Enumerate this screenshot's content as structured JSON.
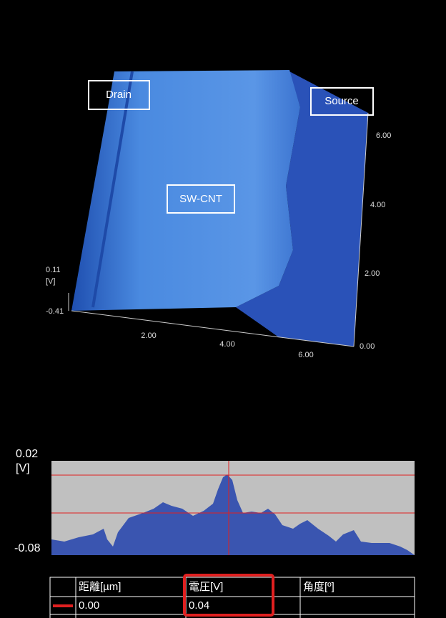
{
  "surface_view": {
    "labels": {
      "drain": "Drain",
      "source": "Source",
      "cnt": "SW-CNT"
    },
    "z_axis": {
      "max": "0.11",
      "unit": "[V]",
      "min": "-0.41"
    },
    "x_axis": {
      "ticks": [
        "2.00",
        "4.00",
        "6.00"
      ]
    },
    "y_axis": {
      "ticks": [
        "0.00",
        "2.00",
        "4.00",
        "6.00"
      ]
    }
  },
  "profile": {
    "max": "0.02",
    "unit": "[V]",
    "min": "-0.08"
  },
  "table": {
    "headers": [
      "距離[µm]",
      "電圧[V]",
      "角度[º]"
    ],
    "rows": [
      [
        "0.00",
        "0.04"
      ]
    ]
  }
}
